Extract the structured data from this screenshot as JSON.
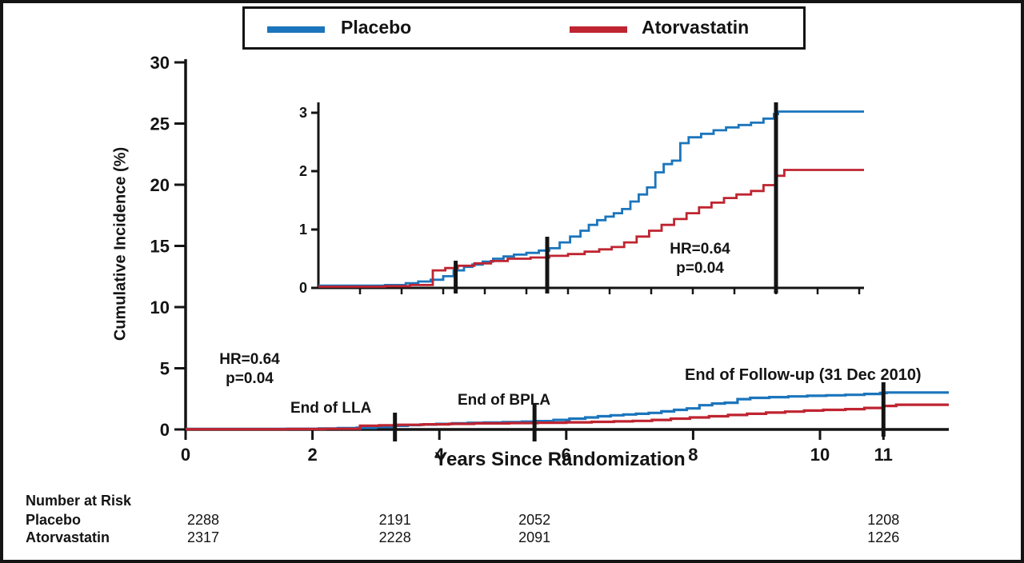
{
  "legend": {
    "items": [
      {
        "label": "Placebo",
        "color": "#1b75bc"
      },
      {
        "label": "Atorvastatin",
        "color": "#bf2430"
      }
    ]
  },
  "annotations": {
    "hr_main": {
      "line1": "HR=0.64",
      "line2": "p=0.04"
    },
    "hr_inset": {
      "line1": "HR=0.64",
      "line2": "p=0.04"
    }
  },
  "chart_data": {
    "type": "line",
    "subtype": "kaplan-meier-cumulative-incidence",
    "xlabel": "Years Since Randomization",
    "ylabel": "Cumulative Incidence (%)",
    "xlim": [
      0,
      12
    ],
    "ylim": [
      0,
      30
    ],
    "xticks": [
      0,
      2,
      4,
      6,
      8,
      10,
      11
    ],
    "yticks": [
      0,
      5,
      10,
      15,
      20,
      25,
      30
    ],
    "grid": false,
    "legend_position": "top-center",
    "step": "post",
    "series": [
      {
        "name": "Placebo",
        "color": "#1b75bc",
        "points": [
          [
            0,
            0.04
          ],
          [
            1.6,
            0.05
          ],
          [
            2.1,
            0.08
          ],
          [
            2.4,
            0.11
          ],
          [
            2.7,
            0.14
          ],
          [
            3.0,
            0.2
          ],
          [
            3.25,
            0.3
          ],
          [
            3.5,
            0.36
          ],
          [
            3.7,
            0.4
          ],
          [
            3.95,
            0.45
          ],
          [
            4.2,
            0.5
          ],
          [
            4.45,
            0.54
          ],
          [
            4.7,
            0.57
          ],
          [
            5.0,
            0.6
          ],
          [
            5.3,
            0.64
          ],
          [
            5.55,
            0.68
          ],
          [
            5.8,
            0.78
          ],
          [
            6.05,
            0.88
          ],
          [
            6.3,
            0.98
          ],
          [
            6.5,
            1.08
          ],
          [
            6.7,
            1.16
          ],
          [
            6.9,
            1.22
          ],
          [
            7.1,
            1.28
          ],
          [
            7.3,
            1.35
          ],
          [
            7.5,
            1.48
          ],
          [
            7.7,
            1.6
          ],
          [
            7.9,
            1.72
          ],
          [
            8.1,
            1.98
          ],
          [
            8.3,
            2.12
          ],
          [
            8.5,
            2.18
          ],
          [
            8.7,
            2.48
          ],
          [
            8.9,
            2.58
          ],
          [
            9.2,
            2.64
          ],
          [
            9.5,
            2.7
          ],
          [
            9.8,
            2.75
          ],
          [
            10.1,
            2.79
          ],
          [
            10.4,
            2.83
          ],
          [
            10.7,
            2.9
          ],
          [
            10.95,
            2.98
          ],
          [
            11.05,
            3.02
          ],
          [
            11.9,
            3.02
          ]
        ]
      },
      {
        "name": "Atorvastatin",
        "color": "#bf2430",
        "points": [
          [
            0,
            0.02
          ],
          [
            1.6,
            0.03
          ],
          [
            2.2,
            0.05
          ],
          [
            2.75,
            0.3
          ],
          [
            3.05,
            0.34
          ],
          [
            3.35,
            0.38
          ],
          [
            3.75,
            0.42
          ],
          [
            4.15,
            0.46
          ],
          [
            4.55,
            0.5
          ],
          [
            5.1,
            0.52
          ],
          [
            5.55,
            0.55
          ],
          [
            6.0,
            0.58
          ],
          [
            6.4,
            0.62
          ],
          [
            6.75,
            0.66
          ],
          [
            7.05,
            0.7
          ],
          [
            7.35,
            0.78
          ],
          [
            7.65,
            0.88
          ],
          [
            7.95,
            0.98
          ],
          [
            8.25,
            1.08
          ],
          [
            8.55,
            1.18
          ],
          [
            8.85,
            1.28
          ],
          [
            9.15,
            1.38
          ],
          [
            9.45,
            1.46
          ],
          [
            9.75,
            1.54
          ],
          [
            10.05,
            1.6
          ],
          [
            10.4,
            1.66
          ],
          [
            10.7,
            1.76
          ],
          [
            11.0,
            1.92
          ],
          [
            11.2,
            2.02
          ],
          [
            11.9,
            2.02
          ]
        ]
      }
    ],
    "markers": [
      {
        "time": 3.3,
        "label": "End of LLA"
      },
      {
        "time": 5.5,
        "label": "End of BPLA"
      },
      {
        "time": 11,
        "label": "End of Follow-up (31 Dec 2010)"
      }
    ],
    "inset": {
      "xlim": [
        0,
        13.1
      ],
      "ylim": [
        0,
        3
      ],
      "yticks": [
        0,
        1,
        2,
        3
      ],
      "annotation": "HR=0.64 p=0.04"
    },
    "hr": "HR=0.64",
    "p_value": "p=0.04"
  },
  "risk_table": {
    "header": "Number at Risk",
    "times": [
      0,
      3.3,
      5.5,
      11
    ],
    "rows": [
      {
        "label": "Placebo",
        "values": [
          "2288",
          "2191",
          "2052",
          "1208"
        ]
      },
      {
        "label": "Atorvastatin",
        "values": [
          "2317",
          "2228",
          "2091",
          "1226"
        ]
      }
    ]
  }
}
